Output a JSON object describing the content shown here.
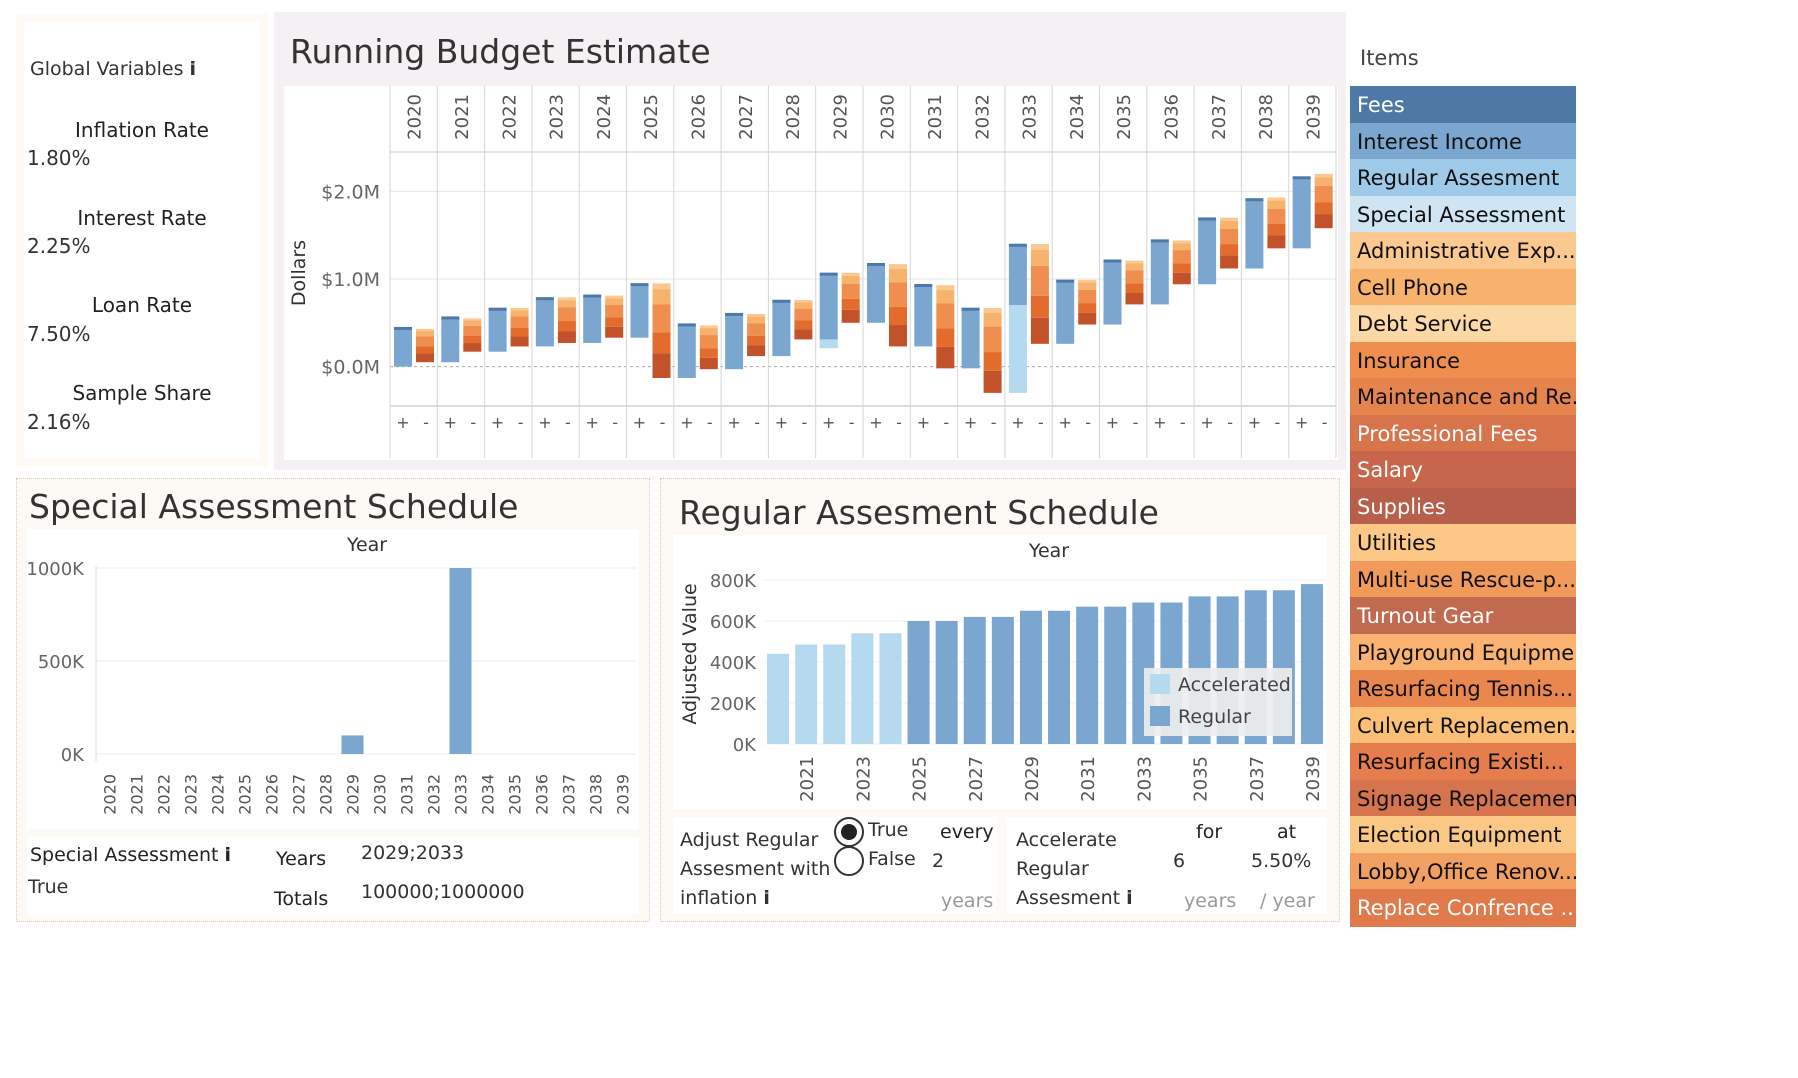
{
  "global": {
    "title": "Global Variables",
    "info_icon": "i",
    "vars": [
      {
        "label": "Inflation Rate",
        "value": "1.80%"
      },
      {
        "label": "Interest Rate",
        "value": "2.25%"
      },
      {
        "label": "Loan Rate",
        "value": "7.50%"
      },
      {
        "label": "Sample Share",
        "value": "2.16%"
      }
    ]
  },
  "running": {
    "title": "Running Budget Estimate",
    "ylabel": "Dollars"
  },
  "items": {
    "title": "Items",
    "list": [
      {
        "label": "Fees",
        "color": "#4e79a7",
        "text": "#ffffff"
      },
      {
        "label": "Interest Income",
        "color": "#7aa6cf",
        "text": "#111111"
      },
      {
        "label": "Regular Assesment",
        "color": "#9fc9e8",
        "text": "#111111"
      },
      {
        "label": "Special Assessment",
        "color": "#cfe5f3",
        "text": "#111111"
      },
      {
        "label": "Administrative Exp...",
        "color": "#fbc890",
        "text": "#111111"
      },
      {
        "label": "Cell Phone",
        "color": "#f7b36e",
        "text": "#111111"
      },
      {
        "label": "Debt Service",
        "color": "#fcd8a4",
        "text": "#111111"
      },
      {
        "label": "Insurance",
        "color": "#ef8e4f",
        "text": "#111111"
      },
      {
        "label": "Maintenance and Re...",
        "color": "#e6844d",
        "text": "#111111"
      },
      {
        "label": "Professional Fees",
        "color": "#d8744c",
        "text": "#ffffff"
      },
      {
        "label": "Salary",
        "color": "#c7664a",
        "text": "#ffffff"
      },
      {
        "label": "Supplies",
        "color": "#b85f4b",
        "text": "#ffffff"
      },
      {
        "label": "Utilities",
        "color": "#fcc787",
        "text": "#111111"
      },
      {
        "label": "Multi-use Rescue-p...",
        "color": "#f19a5a",
        "text": "#111111"
      },
      {
        "label": "Turnout Gear",
        "color": "#c16a4f",
        "text": "#ffffff"
      },
      {
        "label": "Playground Equipme...",
        "color": "#f9b26f",
        "text": "#111111"
      },
      {
        "label": "Resurfacing Tennis...",
        "color": "#e9874e",
        "text": "#111111"
      },
      {
        "label": "Culvert Replacemen...",
        "color": "#fbbf75",
        "text": "#111111"
      },
      {
        "label": "Resurfacing Existi...",
        "color": "#e57d4c",
        "text": "#111111"
      },
      {
        "label": "Signage Replacemen...",
        "color": "#d5744d",
        "text": "#111111"
      },
      {
        "label": "Election Equipment",
        "color": "#fbc784",
        "text": "#111111"
      },
      {
        "label": "Lobby,Office Renov...",
        "color": "#f2a061",
        "text": "#111111"
      },
      {
        "label": "Replace Confrence ...",
        "color": "#e07a4b",
        "text": "#ffffff"
      }
    ]
  },
  "special": {
    "title": "Special Assessment Schedule",
    "summary_label": "Special Assessment",
    "info_icon": "i",
    "summary_value": "True",
    "years_label": "Years",
    "years_value": "2029;2033",
    "totals_label": "Totals",
    "totals_value": "100000;1000000"
  },
  "regular": {
    "title": "Regular Assesment Schedule",
    "adjust_label_1": "Adjust Regular",
    "adjust_label_2": "Assesment with",
    "adjust_label_3": "inflation",
    "info_icon": "i",
    "opt_true": "True",
    "opt_false": "False",
    "every_label": "every",
    "every_value": "2",
    "years_unit": "years",
    "accel_label_1": "Accelerate",
    "accel_label_2": "Regular",
    "accel_label_3": "Assesment",
    "for_label": "for",
    "for_value": "6",
    "for_unit": "years",
    "at_label": "at",
    "at_value": "5.50%",
    "at_unit": "/ year"
  },
  "chart_data": [
    {
      "type": "bar",
      "title": "Running Budget Estimate",
      "ylabel": "Dollars",
      "years": [
        "2020",
        "2021",
        "2022",
        "2023",
        "2024",
        "2025",
        "2026",
        "2027",
        "2028",
        "2029",
        "2030",
        "2031",
        "2032",
        "2033",
        "2034",
        "2035",
        "2036",
        "2037",
        "2038",
        "2039"
      ],
      "sub_columns": [
        "+",
        "-"
      ],
      "yticks": [
        "$0.0M",
        "$1.0M",
        "$2.0M"
      ],
      "ylim": [
        -0.45,
        2.45
      ],
      "income": [
        {
          "start": 0.0,
          "end": 0.43,
          "top": 0.0
        },
        {
          "start": 0.05,
          "end": 0.55,
          "top": 0.0
        },
        {
          "start": 0.17,
          "end": 0.65,
          "top": 0.02
        },
        {
          "start": 0.23,
          "end": 0.77,
          "top": 0.02
        },
        {
          "start": 0.27,
          "end": 0.8,
          "top": 0.01
        },
        {
          "start": 0.33,
          "end": 0.93,
          "top": 0.02
        },
        {
          "start": -0.13,
          "end": 0.47,
          "top": 0.0
        },
        {
          "start": -0.03,
          "end": 0.59,
          "top": 0.01
        },
        {
          "start": 0.12,
          "end": 0.74,
          "top": 0.02
        },
        {
          "start": 0.31,
          "end": 1.05,
          "top": 0.02,
          "special": 0.1
        },
        {
          "start": 0.5,
          "end": 1.16,
          "top": 0.01
        },
        {
          "start": 0.23,
          "end": 0.92,
          "top": 0.01
        },
        {
          "start": -0.02,
          "end": 0.65,
          "top": 0.02
        },
        {
          "start": 0.7,
          "end": 1.38,
          "top": 0.02,
          "special": 1.0
        },
        {
          "start": 0.26,
          "end": 0.97,
          "top": 0.02
        },
        {
          "start": 0.48,
          "end": 1.2,
          "top": 0.01
        },
        {
          "start": 0.71,
          "end": 1.43,
          "top": 0.01
        },
        {
          "start": 0.94,
          "end": 1.68,
          "top": 0.02
        },
        {
          "start": 1.12,
          "end": 1.9,
          "top": 0.03
        },
        {
          "start": 1.35,
          "end": 2.15,
          "top": 0.05
        }
      ],
      "expense": [
        {
          "top": 0.43,
          "bottom": 0.05
        },
        {
          "top": 0.55,
          "bottom": 0.17
        },
        {
          "top": 0.67,
          "bottom": 0.23
        },
        {
          "top": 0.79,
          "bottom": 0.27
        },
        {
          "top": 0.81,
          "bottom": 0.33
        },
        {
          "top": 0.95,
          "bottom": -0.13
        },
        {
          "top": 0.47,
          "bottom": -0.03
        },
        {
          "top": 0.6,
          "bottom": 0.12
        },
        {
          "top": 0.76,
          "bottom": 0.31
        },
        {
          "top": 1.07,
          "bottom": 0.5
        },
        {
          "top": 1.17,
          "bottom": 0.23
        },
        {
          "top": 0.93,
          "bottom": -0.02
        },
        {
          "top": 0.67,
          "bottom": -0.3
        },
        {
          "top": 1.4,
          "bottom": 0.26
        },
        {
          "top": 0.99,
          "bottom": 0.48
        },
        {
          "top": 1.21,
          "bottom": 0.71
        },
        {
          "top": 1.44,
          "bottom": 0.94
        },
        {
          "top": 1.7,
          "bottom": 1.12
        },
        {
          "top": 1.93,
          "bottom": 1.35
        },
        {
          "top": 2.2,
          "bottom": 1.58
        }
      ]
    },
    {
      "type": "bar",
      "title": "Special Assessment Schedule",
      "xlabel": "Year",
      "categories": [
        "2020",
        "2021",
        "2022",
        "2023",
        "2024",
        "2025",
        "2026",
        "2027",
        "2028",
        "2029",
        "2030",
        "2031",
        "2032",
        "2033",
        "2034",
        "2035",
        "2036",
        "2037",
        "2038",
        "2039"
      ],
      "values": [
        0,
        0,
        0,
        0,
        0,
        0,
        0,
        0,
        0,
        100000,
        0,
        0,
        0,
        1000000,
        0,
        0,
        0,
        0,
        0,
        0
      ],
      "yticks": [
        "0K",
        "500K",
        "1000K"
      ],
      "ylim": [
        0,
        1000000
      ],
      "color": "#7aa6cf"
    },
    {
      "type": "bar",
      "title": "Regular Assesment Schedule",
      "xlabel": "Year",
      "ylabel": "Adjusted Value",
      "categories": [
        "2020",
        "2021",
        "2022",
        "2023",
        "2024",
        "2025",
        "2026",
        "2027",
        "2028",
        "2029",
        "2030",
        "2031",
        "2032",
        "2033",
        "2034",
        "2035",
        "2036",
        "2037",
        "2038",
        "2039"
      ],
      "tick_labels": [
        "2021",
        "2023",
        "2025",
        "2027",
        "2029",
        "2031",
        "2033",
        "2035",
        "2037",
        "2039"
      ],
      "yticks": [
        "0K",
        "200K",
        "400K",
        "600K",
        "800K"
      ],
      "ylim": [
        0,
        800000
      ],
      "series": [
        {
          "name": "Accelerated",
          "color": "#b5d9ef",
          "values": [
            440000,
            485000,
            485000,
            540000,
            540000,
            0,
            0,
            0,
            0,
            0,
            0,
            0,
            0,
            0,
            0,
            0,
            0,
            0,
            0,
            0
          ]
        },
        {
          "name": "Regular",
          "color": "#7aa6cf",
          "values": [
            0,
            0,
            0,
            0,
            0,
            600000,
            600000,
            620000,
            620000,
            650000,
            650000,
            670000,
            670000,
            690000,
            690000,
            720000,
            720000,
            750000,
            750000,
            780000
          ]
        }
      ],
      "legend": [
        "Accelerated",
        "Regular"
      ]
    }
  ]
}
